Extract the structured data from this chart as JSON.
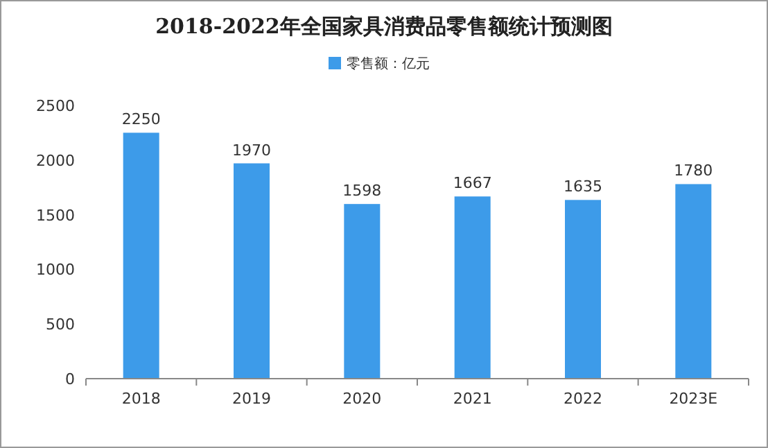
{
  "chart_data": {
    "type": "bar",
    "title": "2018-2022年全国家具消费品零售额统计预测图",
    "categories": [
      "2018",
      "2019",
      "2020",
      "2021",
      "2022",
      "2023E"
    ],
    "series": [
      {
        "name": "零售额：亿元",
        "color": "#3d9be9",
        "values": [
          2250,
          1970,
          1598,
          1667,
          1635,
          1780
        ]
      }
    ],
    "ylim": [
      0,
      2500
    ],
    "yticks": [
      0,
      500,
      1000,
      1500,
      2000,
      2500
    ],
    "data_labels": true,
    "legend": "top"
  }
}
